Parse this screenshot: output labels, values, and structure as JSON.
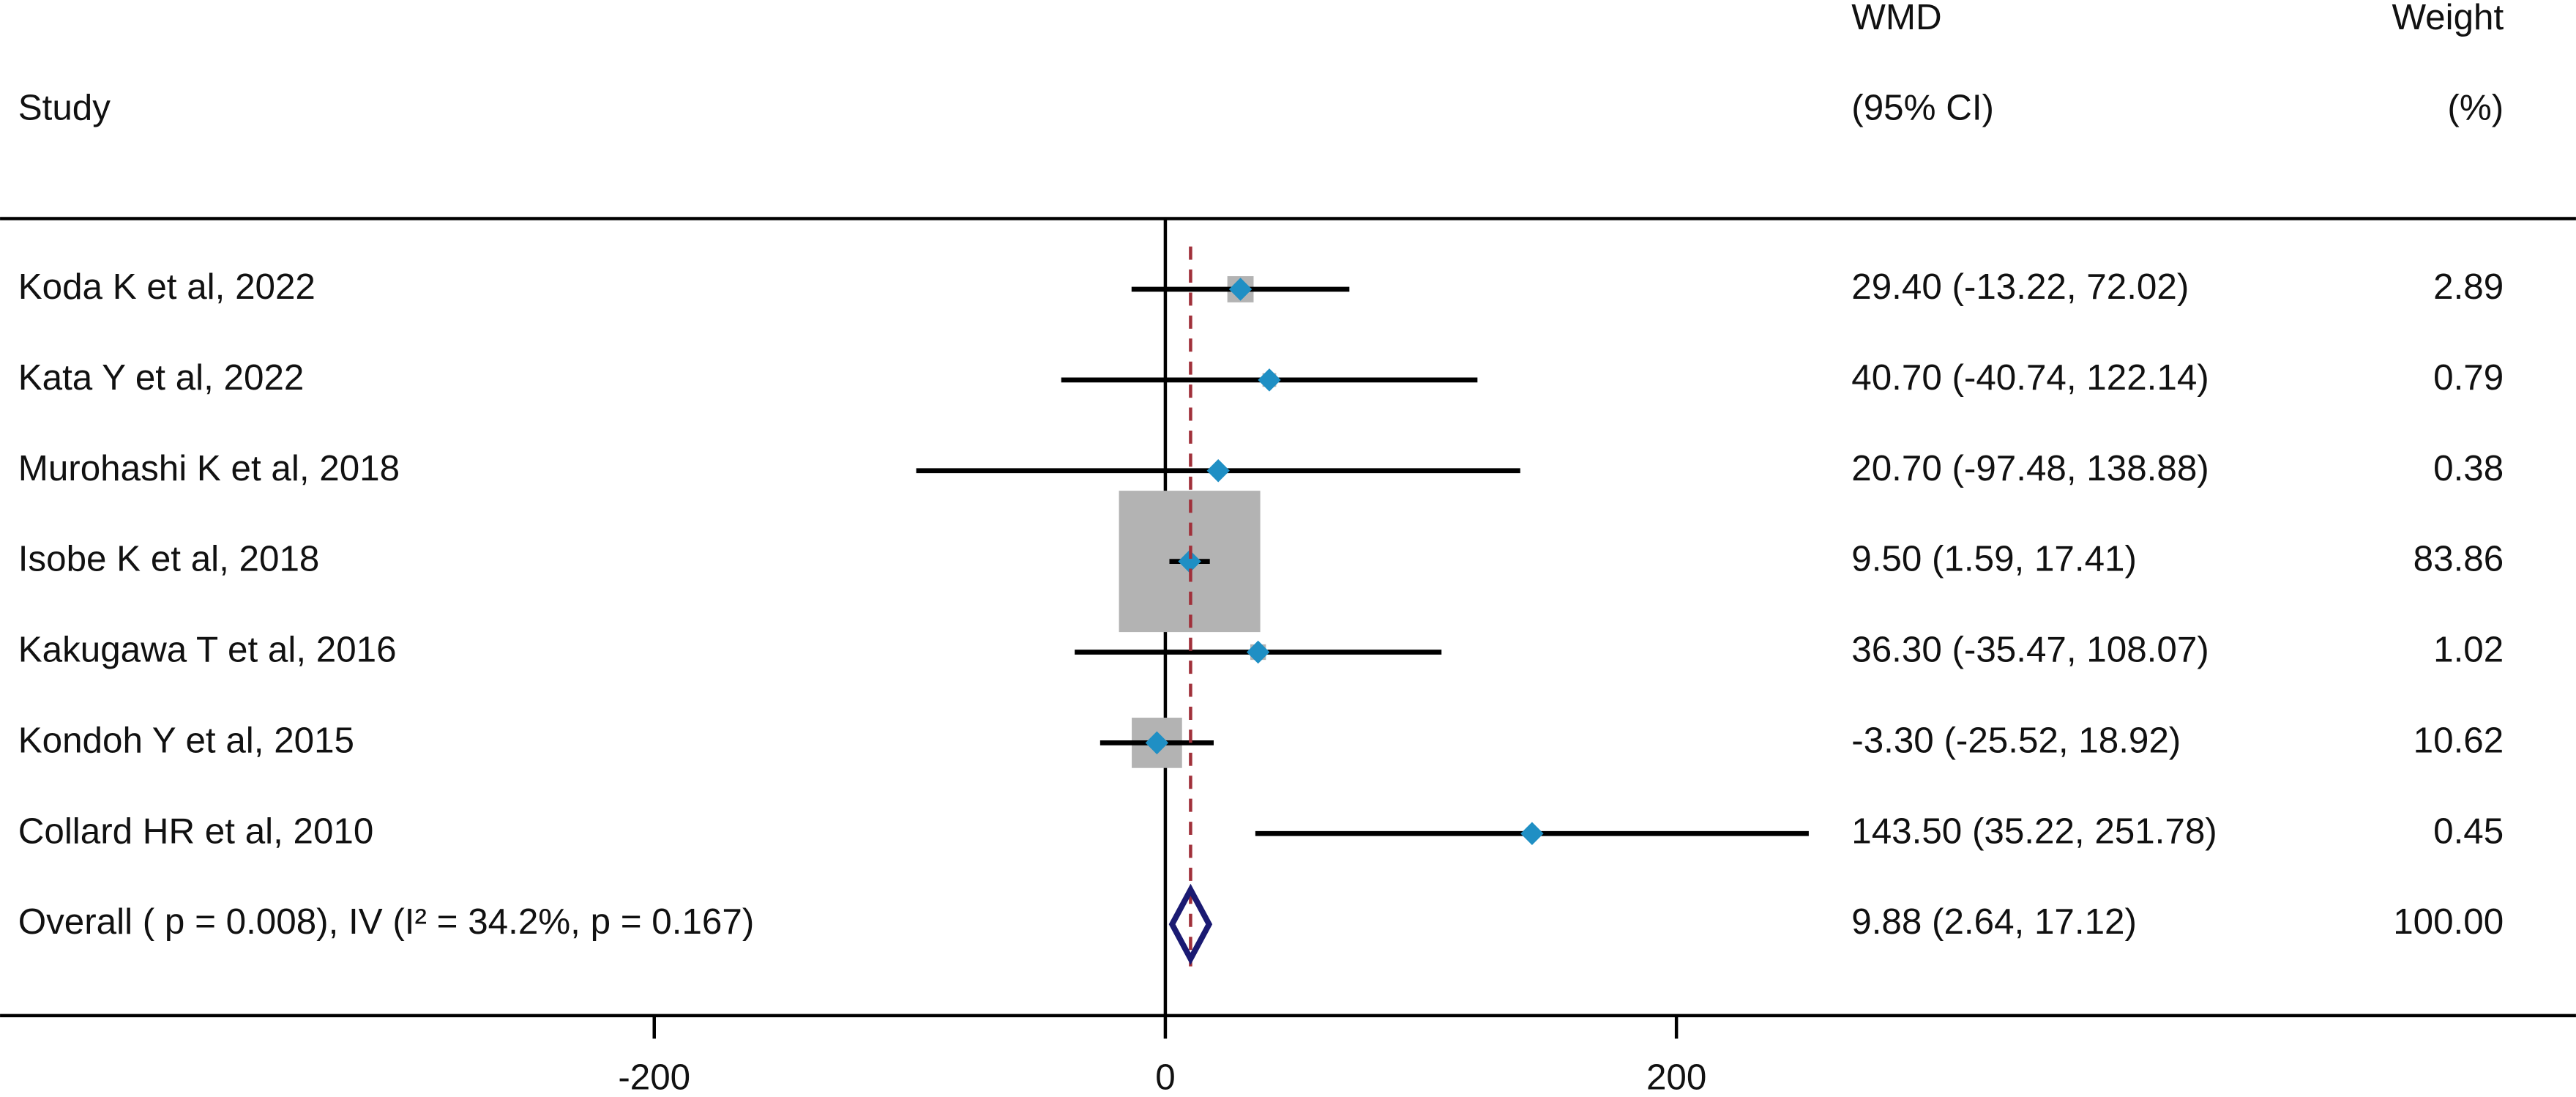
{
  "chart_data": {
    "type": "forest",
    "headers": {
      "study": "Study",
      "estimate": [
        "WMD",
        "(95% CI)"
      ],
      "weight": [
        "Weight",
        "(%)"
      ]
    },
    "categories": [
      "Koda K et al, 2022",
      "Kata Y et al, 2022",
      "Murohashi K et al, 2018",
      "Isobe K et al, 2018",
      "Kakugawa T et al, 2016",
      "Kondoh Y et al, 2015",
      "Collard HR et al, 2010"
    ],
    "values": [
      29.4,
      40.7,
      20.7,
      9.5,
      36.3,
      -3.3,
      143.5
    ],
    "lower": [
      -13.22,
      -40.74,
      -97.48,
      1.59,
      -35.47,
      -25.52,
      35.22
    ],
    "upper": [
      72.02,
      122.14,
      138.88,
      17.41,
      108.07,
      18.92,
      251.78
    ],
    "value_labels": [
      "29.40 (-13.22, 72.02)",
      "40.70 (-40.74, 122.14)",
      "20.70 (-97.48, 138.88)",
      "9.50 (1.59, 17.41)",
      "36.30 (-35.47, 108.07)",
      "-3.30 (-25.52, 18.92)",
      "143.50 (35.22, 251.78)"
    ],
    "weights": [
      2.89,
      0.79,
      0.38,
      83.86,
      1.02,
      10.62,
      0.45
    ],
    "weight_labels": [
      "2.89",
      "0.79",
      "0.38",
      "83.86",
      "1.02",
      "10.62",
      "0.45"
    ],
    "overall": {
      "label": "Overall ( p = 0.008), IV (I² = 34.2%, p = 0.167)",
      "value": 9.88,
      "lower": 2.64,
      "upper": 17.12,
      "value_label": "9.88 (2.64, 17.12)",
      "weight": 100,
      "weight_label": "100.00"
    },
    "xlim": [
      -456,
      552
    ],
    "xticks": [
      -200,
      0,
      200
    ],
    "box_color": "#b3b3b3",
    "point_color": "#1f8fc4",
    "diamond_color": "#1a1a72",
    "reference_color": "#a0303a"
  }
}
